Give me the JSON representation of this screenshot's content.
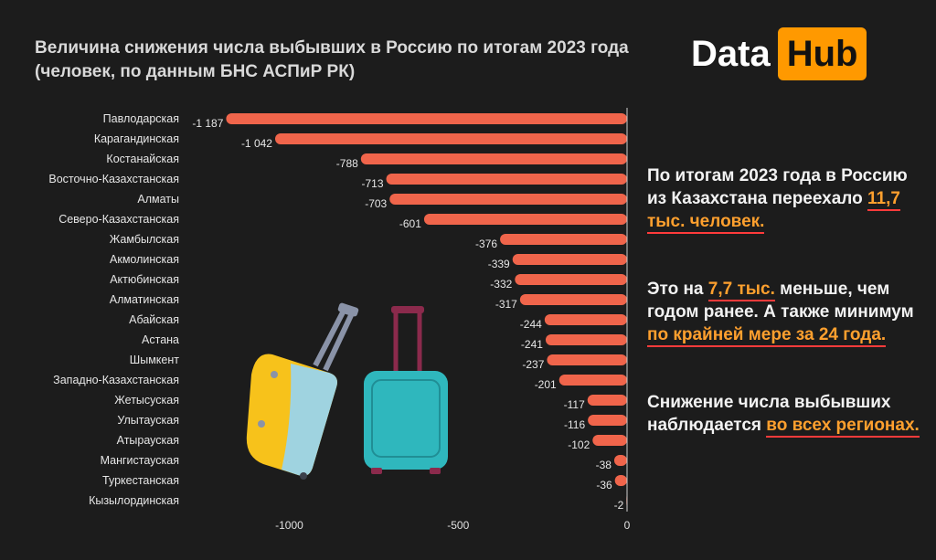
{
  "title_line1": "Величина снижения числа выбывших в Россию по итогам 2023 года",
  "title_line2": "(человек, по данным БНС АСПиР РК)",
  "logo": {
    "left": "Data",
    "right": "Hub"
  },
  "colors": {
    "bar": "#f0654b",
    "accent": "#ffa02e",
    "logo_bg": "#ff9900",
    "underline": "#ff3b3b"
  },
  "side_text": {
    "p1_a": "По итогам 2023 года в Россию из Казахстана переехало",
    "p1_hl": "11,7 тыс. человек.",
    "p2_a": "Это на",
    "p2_hl1": "7,7 тыс.",
    "p2_b": "меньше, чем годом ранее. А также минимум",
    "p2_hl2": "по крайней мере за 24 года.",
    "p3_a": "Снижение числа выбывших наблюдается",
    "p3_hl": "во всех регионах."
  },
  "chart_data": {
    "type": "bar",
    "orientation": "horizontal",
    "categories": [
      "Павлодарская",
      "Карагандинская",
      "Костанайская",
      "Восточно-Казахстанская",
      "Алматы",
      "Северо-Казахстанская",
      "Жамбылская",
      "Акмолинская",
      "Актюбинская",
      "Алматинская",
      "Абайская",
      "Астана",
      "Шымкент",
      "Западно-Казахстанская",
      "Жетысуская",
      "Улытауская",
      "Атырауская",
      "Мангистауская",
      "Туркестанская",
      "Кызылординская"
    ],
    "values": [
      -1187,
      -1042,
      -788,
      -713,
      -703,
      -601,
      -376,
      -339,
      -332,
      -317,
      -244,
      -241,
      -237,
      -201,
      -117,
      -116,
      -102,
      -38,
      -36,
      -2
    ],
    "labels": [
      "-1 187",
      "-1 042",
      "-788",
      "-713",
      "-703",
      "-601",
      "-376",
      "-339",
      "-332",
      "-317",
      "-244",
      "-241",
      "-237",
      "-201",
      "-117",
      "-116",
      "-102",
      "-38",
      "-36",
      "-2"
    ],
    "xlim": [
      -1250,
      0
    ],
    "xticks": [
      -1000,
      -500,
      0
    ],
    "xtick_labels": [
      "-1000",
      "-500",
      "0"
    ]
  }
}
